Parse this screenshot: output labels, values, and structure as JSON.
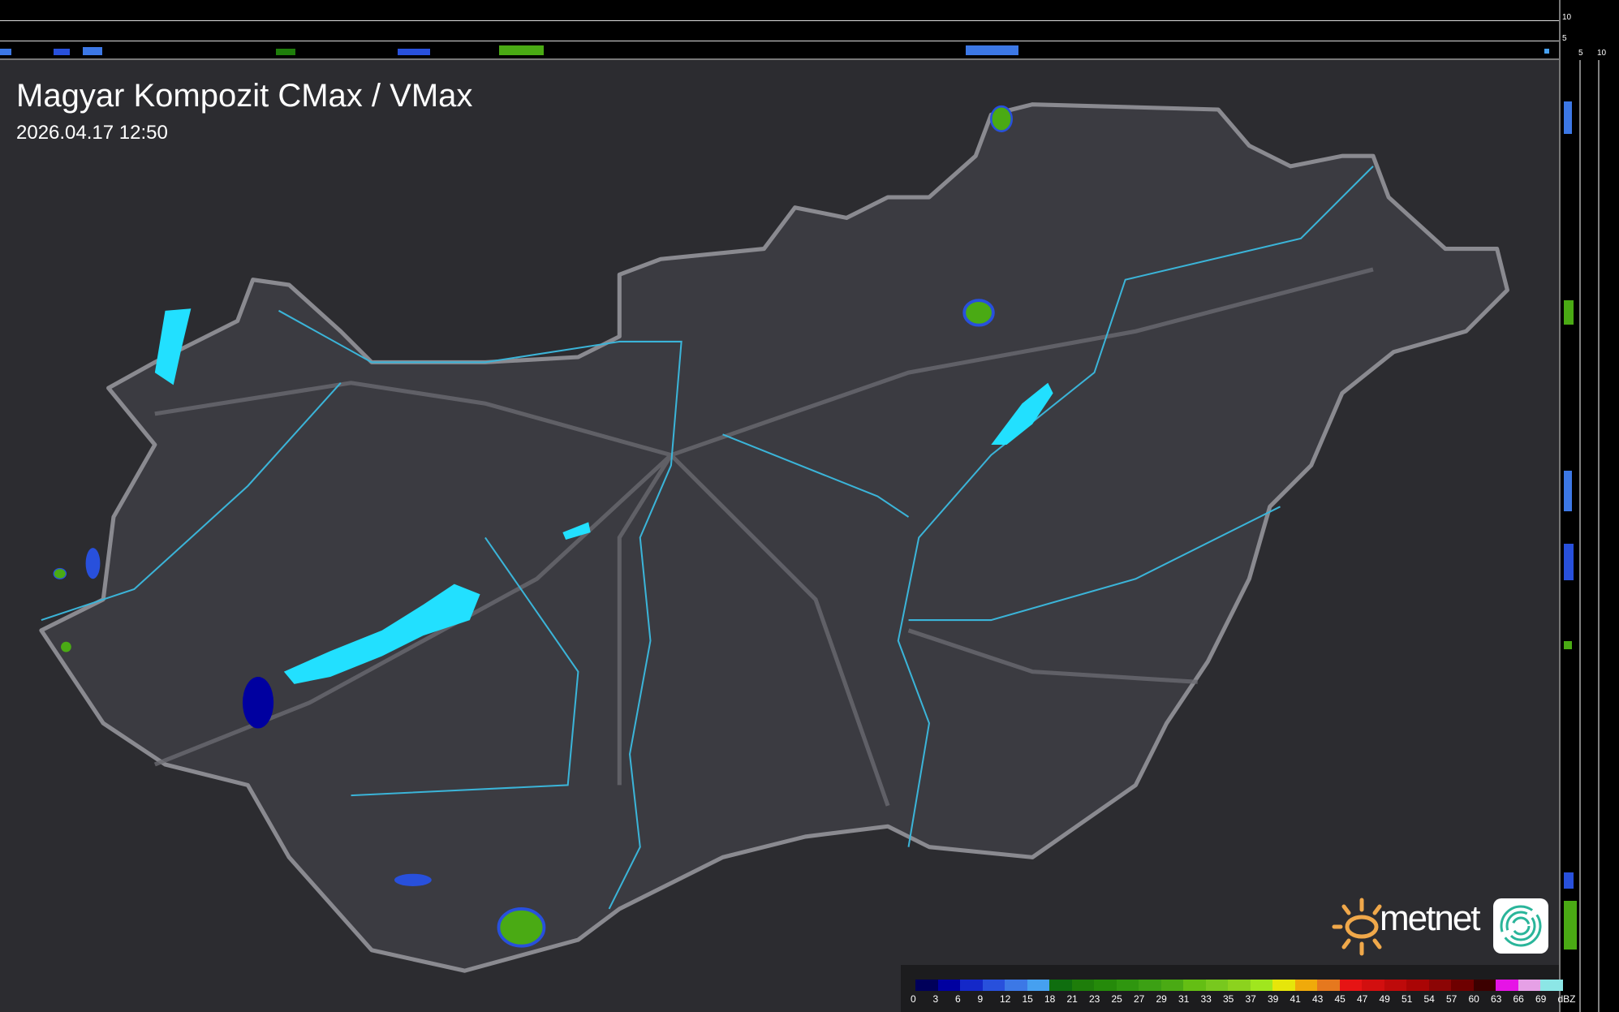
{
  "title": "Magyar Kompozit CMax / VMax",
  "timestamp": "2026.04.17 12:50",
  "profile_axes": {
    "top_labels": [
      "10",
      "5"
    ],
    "right_labels": [
      "5",
      "10"
    ]
  },
  "logo": {
    "text": "metnet"
  },
  "legend": {
    "unit": "dBZ",
    "ticks": [
      "0",
      "3",
      "6",
      "9",
      "12",
      "15",
      "18",
      "21",
      "23",
      "25",
      "27",
      "29",
      "31",
      "33",
      "35",
      "37",
      "39",
      "41",
      "43",
      "45",
      "47",
      "49",
      "51",
      "54",
      "57",
      "60",
      "63",
      "66",
      "69"
    ],
    "colors": [
      "#00005a",
      "#0000a0",
      "#1428c8",
      "#2850dc",
      "#3c78e6",
      "#46a0f0",
      "#0f6e0f",
      "#1e7d0a",
      "#258a0a",
      "#2f960f",
      "#3ca014",
      "#4aaa14",
      "#64be14",
      "#78c81e",
      "#8cd21e",
      "#a0e61e",
      "#e6e60a",
      "#f0aa0a",
      "#e6781e",
      "#e61414",
      "#d20f0f",
      "#be0a0a",
      "#aa0505",
      "#8c0505",
      "#6e0000",
      "#3c0000",
      "#e614e6",
      "#e6a0e6",
      "#8ce6e6"
    ]
  },
  "colors": {
    "background": "#2e2e32",
    "country": "#3a3a40",
    "border": "#8a8a90",
    "rivers": "#3bb4d8",
    "lakes": "#22e0ff"
  }
}
